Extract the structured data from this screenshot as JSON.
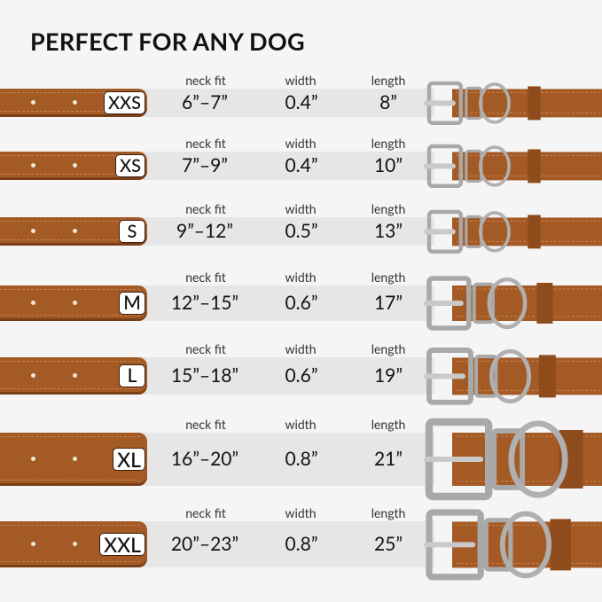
{
  "title": "PERFECT FOR ANY DOG",
  "column_labels": {
    "neck_fit": "neck fit",
    "width": "width",
    "length": "length"
  },
  "colors": {
    "leather": "#a35a25",
    "metal": "#b8b8b8",
    "band": "#e6e6e6"
  },
  "sizes": [
    {
      "size": "XXS",
      "neck_fit": "6”–7”",
      "width": "0.4”",
      "length": "8”"
    },
    {
      "size": "XS",
      "neck_fit": "7”–9”",
      "width": "0.4”",
      "length": "10”"
    },
    {
      "size": "S",
      "neck_fit": "9”–12”",
      "width": "0.5”",
      "length": "13”"
    },
    {
      "size": "M",
      "neck_fit": "12”–15”",
      "width": "0.6”",
      "length": "17”"
    },
    {
      "size": "L",
      "neck_fit": "15”–18”",
      "width": "0.6”",
      "length": "19”"
    },
    {
      "size": "XL",
      "neck_fit": "16”–20”",
      "width": "0.8”",
      "length": "21”"
    },
    {
      "size": "XXL",
      "neck_fit": "20”–23”",
      "width": "0.8”",
      "length": "25”"
    }
  ]
}
